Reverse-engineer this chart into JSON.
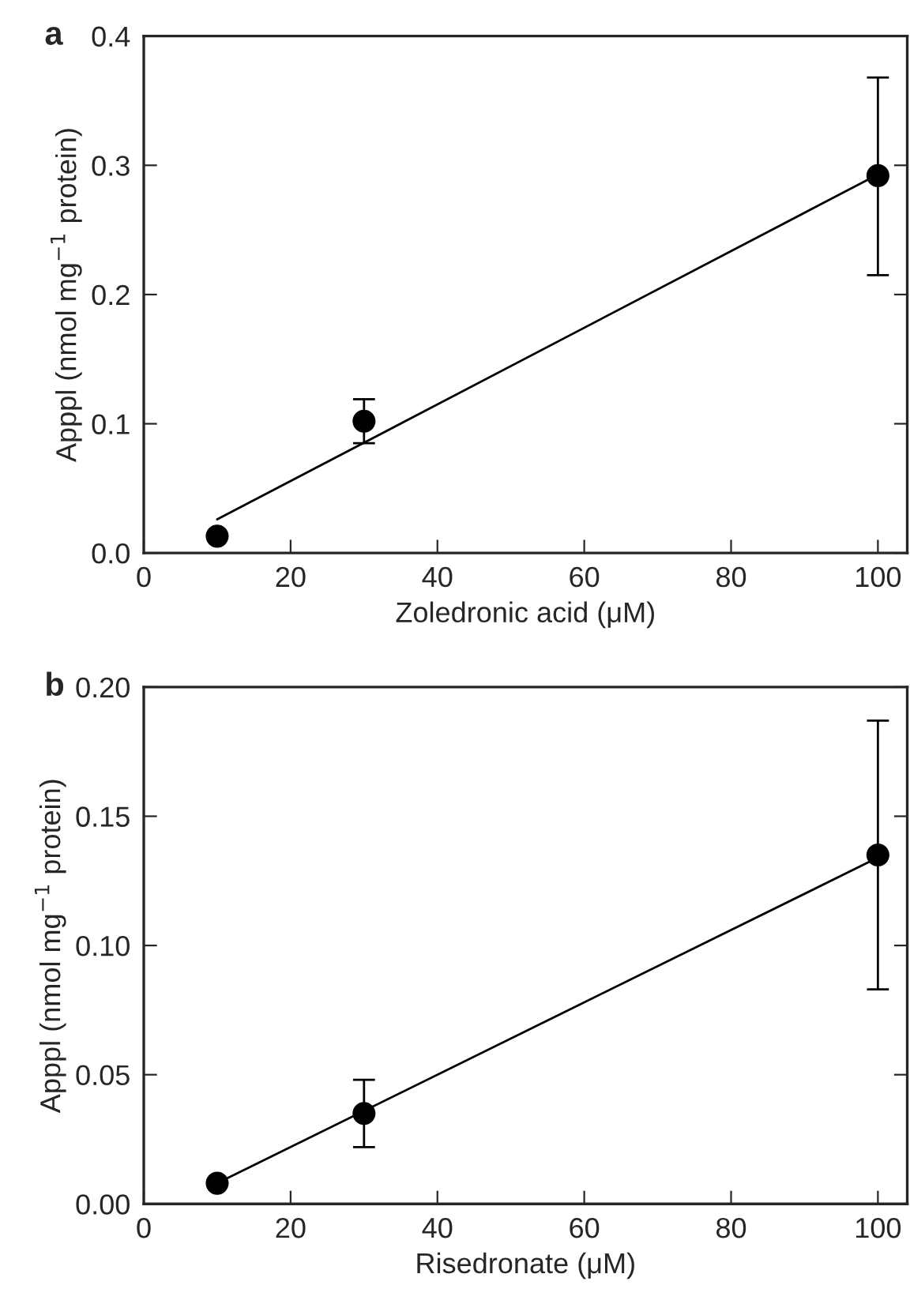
{
  "chart_data": [
    {
      "type": "scatter",
      "title": "a",
      "xlabel": "Zoledronic acid (μM)",
      "ylabel": "Apppl (nmol mg$^{−1}$ protein)",
      "xlim": [
        0,
        104
      ],
      "xticks": [
        0,
        20,
        40,
        60,
        80,
        100
      ],
      "ylim": [
        0,
        0.4
      ],
      "yticks": [
        {
          "value": 0,
          "label": "0.0"
        },
        0.1,
        0.2,
        0.3,
        0.4
      ],
      "grid": false,
      "series": [
        {
          "color": "#000000",
          "marker": "circle",
          "x": [
            10,
            30,
            100
          ],
          "values": [
            0.013,
            0.102,
            0.292
          ],
          "errors": [
            null,
            [
              0.085,
              0.119
            ],
            [
              0.215,
              0.368
            ]
          ]
        },
        {
          "type": "line",
          "marker": "none",
          "color": "#000000",
          "x": [
            10,
            99
          ],
          "values": [
            0.026,
            0.29
          ]
        }
      ]
    },
    {
      "type": "scatter",
      "title": "b",
      "xlabel": "Risedronate (μM)",
      "ylabel": "Apppl (nmol mg$^{−1}$ protein)",
      "xlim": [
        0,
        104
      ],
      "xticks": [
        0,
        20,
        40,
        60,
        80,
        100
      ],
      "ylim": [
        0,
        0.2
      ],
      "yticks": [
        {
          "value": 0,
          "label": "0.00"
        },
        0.05,
        {
          "value": 0.1,
          "label": "0.10"
        },
        0.15,
        {
          "value": 0.2,
          "label": "0.20"
        }
      ],
      "grid": false,
      "series": [
        {
          "color": "#000000",
          "marker": "circle",
          "x": [
            10,
            30,
            100
          ],
          "values": [
            0.008,
            0.035,
            0.135
          ],
          "errors": [
            null,
            [
              0.022,
              0.048
            ],
            [
              0.083,
              0.187
            ]
          ]
        },
        {
          "type": "line",
          "marker": "none",
          "color": "#000000",
          "x": [
            10,
            100
          ],
          "values": [
            0.008,
            0.134
          ]
        }
      ]
    }
  ]
}
